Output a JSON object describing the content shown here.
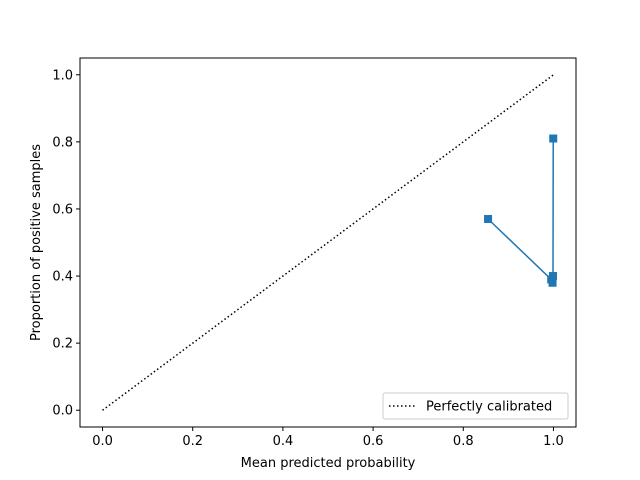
{
  "chart_data": {
    "type": "line",
    "title": "",
    "xlabel": "Mean predicted probability",
    "ylabel": "Proportion of positive samples",
    "xlim": [
      -0.05,
      1.05
    ],
    "ylim": [
      -0.05,
      1.05
    ],
    "x_ticks": [
      0.0,
      0.2,
      0.4,
      0.6,
      0.8,
      1.0
    ],
    "y_ticks": [
      0.0,
      0.2,
      0.4,
      0.6,
      0.8,
      1.0
    ],
    "x_tick_labels": [
      "0.0",
      "0.2",
      "0.4",
      "0.6",
      "0.8",
      "1.0"
    ],
    "y_tick_labels": [
      "0.0",
      "0.2",
      "0.4",
      "0.6",
      "0.8",
      "1.0"
    ],
    "grid": false,
    "legend_position": "lower-right",
    "series": [
      {
        "name": "Perfectly calibrated",
        "style": "dotted",
        "color": "#000000",
        "marker": "none",
        "x": [
          0.0,
          1.0
        ],
        "y": [
          0.0,
          1.0
        ]
      },
      {
        "style": "solid",
        "color": "#1f77b4",
        "marker": "square",
        "x": [
          0.855,
          0.995,
          0.998,
          0.999,
          0.9995
        ],
        "y": [
          0.57,
          0.39,
          0.38,
          0.4,
          0.81
        ]
      }
    ]
  }
}
